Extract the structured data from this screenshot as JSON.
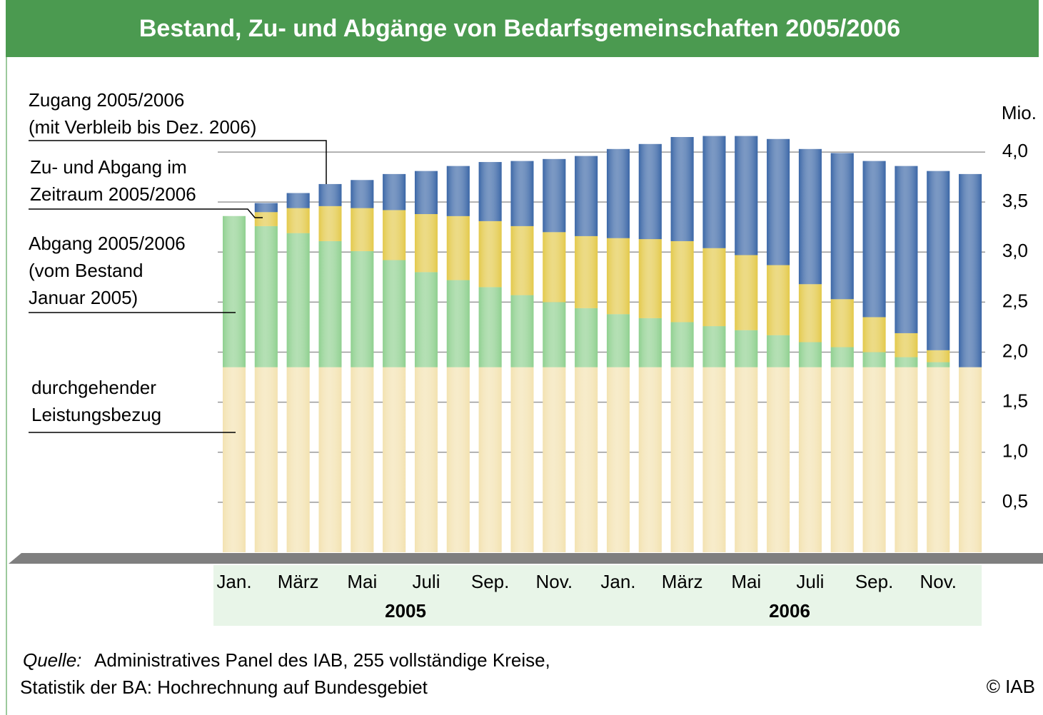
{
  "chart_data": {
    "type": "stacked_bar",
    "title": "Bestand, Zu- und Abgänge von Bedarfsgemeinschaften 2005/2006",
    "y_label": "Mio.",
    "categories": [
      "Jan.",
      null,
      "März",
      null,
      "Mai",
      null,
      "Juli",
      null,
      "Sep.",
      null,
      "Nov.",
      null,
      "Jan.",
      null,
      "März",
      null,
      "Mai",
      null,
      "Juli",
      null,
      "Sep.",
      null,
      "Nov.",
      null
    ],
    "groups": [
      {
        "label": "2005",
        "from": 0,
        "to": 11
      },
      {
        "label": "2006",
        "from": 12,
        "to": 23
      }
    ],
    "series": [
      {
        "name": "durchgehender\nLeistungsbezug",
        "color": "#f3e2b0",
        "values": [
          1.85,
          1.85,
          1.85,
          1.85,
          1.85,
          1.85,
          1.85,
          1.85,
          1.85,
          1.85,
          1.85,
          1.85,
          1.85,
          1.85,
          1.85,
          1.85,
          1.85,
          1.85,
          1.85,
          1.85,
          1.85,
          1.85,
          1.85,
          1.85
        ]
      },
      {
        "name": "Abgang 2005/2006\n(vom Bestand\nJanuar 2005)",
        "color": "#8fd08f",
        "values": [
          1.51,
          1.41,
          1.34,
          1.26,
          1.16,
          1.07,
          0.95,
          0.87,
          0.8,
          0.72,
          0.65,
          0.59,
          0.53,
          0.49,
          0.45,
          0.41,
          0.37,
          0.32,
          0.25,
          0.2,
          0.15,
          0.1,
          0.05,
          0
        ]
      },
      {
        "name": "Zu- und Abgang im\nZeitraum 2005/2006",
        "color": "#e3c94a",
        "values": [
          0,
          0.14,
          0.25,
          0.35,
          0.43,
          0.5,
          0.58,
          0.64,
          0.66,
          0.69,
          0.7,
          0.72,
          0.76,
          0.79,
          0.81,
          0.78,
          0.75,
          0.7,
          0.58,
          0.48,
          0.35,
          0.24,
          0.12,
          0
        ]
      },
      {
        "name": "Zugang 2005/2006\n(mit Verbleib bis Dez. 2006)",
        "color": "#3a66a6",
        "values": [
          0,
          0.09,
          0.15,
          0.22,
          0.28,
          0.36,
          0.43,
          0.5,
          0.59,
          0.65,
          0.73,
          0.8,
          0.89,
          0.95,
          1.04,
          1.12,
          1.19,
          1.26,
          1.35,
          1.46,
          1.56,
          1.67,
          1.79,
          1.93
        ]
      }
    ],
    "ylim": [
      0,
      4.3
    ],
    "yticks": [
      {
        "value": 0.5,
        "label": "0,5"
      },
      {
        "value": 1.0,
        "label": "1,0"
      },
      {
        "value": 1.5,
        "label": "1,5"
      },
      {
        "value": 2.0,
        "label": "2,0"
      },
      {
        "value": 2.5,
        "label": "2,5"
      },
      {
        "value": 3.0,
        "label": "3,0"
      },
      {
        "value": 3.5,
        "label": "3,5"
      },
      {
        "value": 4.0,
        "label": "4,0"
      }
    ],
    "grid": true,
    "source_label": "Quelle:",
    "source": [
      "Administratives Panel des IAB, 255 vollständige Kreise,",
      "Statistik der BA: Hochrechnung auf Bundesgebiet"
    ],
    "copyright": "© IAB"
  }
}
